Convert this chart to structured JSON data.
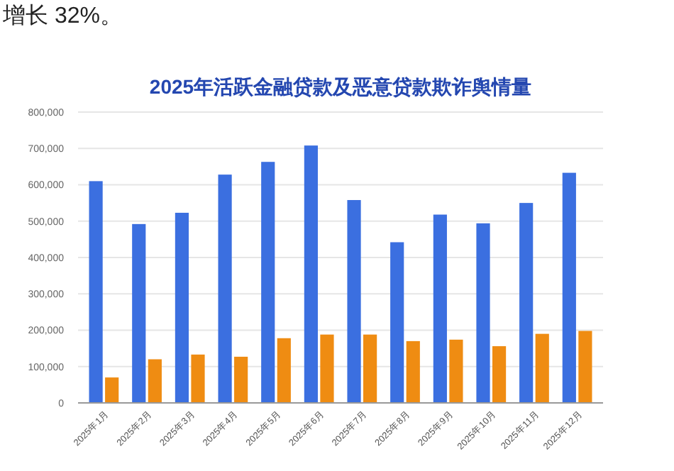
{
  "chart_data": {
    "type": "bar",
    "title": "2025年活跃金融贷款及恶意贷款欺诈舆情量",
    "annotations": [
      "增长 32%。"
    ],
    "categories": [
      "2025年1月",
      "2025年2月",
      "2025年3月",
      "2025年4月",
      "2025年5月",
      "2025年6月",
      "2025年7月",
      "2025年8月",
      "2025年9月",
      "2025年10月",
      "2025年11月",
      "2025年12月"
    ],
    "series": [
      {
        "color": "#3b6fe0",
        "values": [
          610000,
          492000,
          523000,
          628000,
          663000,
          708000,
          558000,
          442000,
          518000,
          494000,
          550000,
          633000
        ]
      },
      {
        "color": "#ef8c12",
        "values": [
          70000,
          120000,
          133000,
          127000,
          178000,
          188000,
          188000,
          170000,
          174000,
          156000,
          190000,
          198000
        ]
      }
    ],
    "ylim": [
      0,
      800000
    ],
    "yticks": [
      {
        "value": 0,
        "label": "0"
      },
      {
        "value": 100000,
        "label": "100,000"
      },
      {
        "value": 200000,
        "label": "200,000"
      },
      {
        "value": 300000,
        "label": "300,000"
      },
      {
        "value": 400000,
        "label": "400,000"
      },
      {
        "value": 500000,
        "label": "500,000"
      },
      {
        "value": 600000,
        "label": "600,000"
      },
      {
        "value": 700000,
        "label": "700,000"
      },
      {
        "value": 800000,
        "label": "800,000"
      }
    ],
    "grid": "y"
  }
}
